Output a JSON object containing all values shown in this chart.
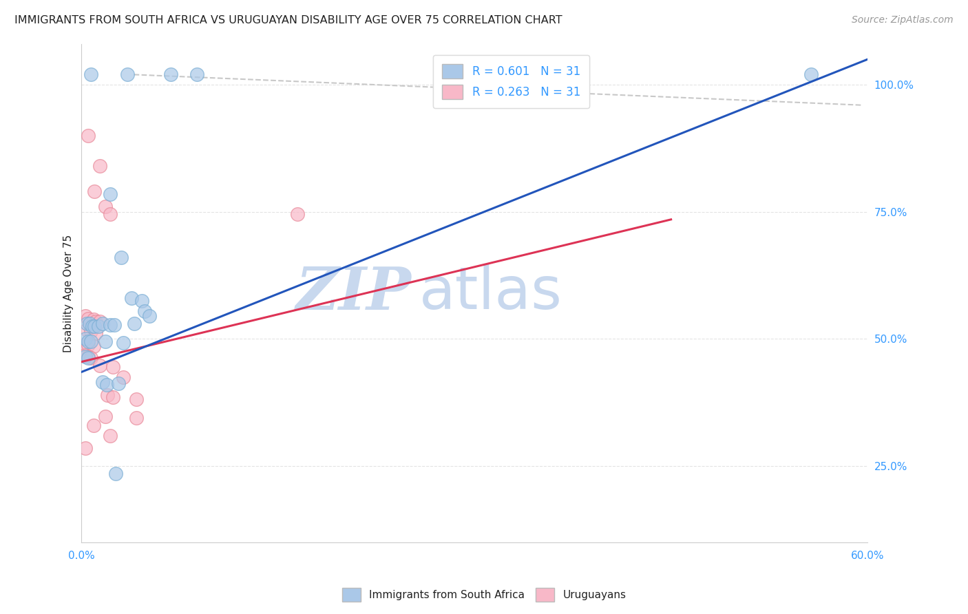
{
  "title": "IMMIGRANTS FROM SOUTH AFRICA VS URUGUAYAN DISABILITY AGE OVER 75 CORRELATION CHART",
  "source": "Source: ZipAtlas.com",
  "ylabel": "Disability Age Over 75",
  "x_min": 0.0,
  "x_max": 0.6,
  "y_min": 0.1,
  "y_max": 1.08,
  "y_ticks": [
    0.25,
    0.5,
    0.75,
    1.0
  ],
  "y_tick_labels": [
    "25.0%",
    "50.0%",
    "75.0%",
    "100.0%"
  ],
  "x_ticks": [
    0.0,
    0.1,
    0.2,
    0.3,
    0.4,
    0.5,
    0.6
  ],
  "x_tick_labels": [
    "0.0%",
    "",
    "",
    "",
    "",
    "",
    "60.0%"
  ],
  "legend_entries": [
    {
      "label": "R = 0.601   N = 31"
    },
    {
      "label": "R = 0.263   N = 31"
    }
  ],
  "legend_bottom": [
    {
      "label": "Immigrants from South Africa"
    },
    {
      "label": "Uruguayans"
    }
  ],
  "blue_line": {
    "x": [
      0.0,
      0.6
    ],
    "y": [
      0.435,
      1.05
    ]
  },
  "pink_line": {
    "x": [
      0.0,
      0.45
    ],
    "y": [
      0.455,
      0.735
    ]
  },
  "diag_line": {
    "x": [
      0.04,
      0.595
    ],
    "y": [
      1.02,
      0.96
    ]
  },
  "blue_scatter": [
    [
      0.007,
      1.02
    ],
    [
      0.035,
      1.02
    ],
    [
      0.068,
      1.02
    ],
    [
      0.088,
      1.02
    ],
    [
      0.557,
      1.02
    ],
    [
      0.022,
      0.785
    ],
    [
      0.03,
      0.66
    ],
    [
      0.038,
      0.58
    ],
    [
      0.046,
      0.575
    ],
    [
      0.004,
      0.53
    ],
    [
      0.006,
      0.53
    ],
    [
      0.008,
      0.525
    ],
    [
      0.01,
      0.525
    ],
    [
      0.013,
      0.525
    ],
    [
      0.016,
      0.53
    ],
    [
      0.022,
      0.528
    ],
    [
      0.025,
      0.528
    ],
    [
      0.04,
      0.53
    ],
    [
      0.048,
      0.555
    ],
    [
      0.052,
      0.545
    ],
    [
      0.003,
      0.5
    ],
    [
      0.005,
      0.495
    ],
    [
      0.007,
      0.495
    ],
    [
      0.018,
      0.495
    ],
    [
      0.032,
      0.492
    ],
    [
      0.003,
      0.465
    ],
    [
      0.005,
      0.462
    ],
    [
      0.016,
      0.415
    ],
    [
      0.019,
      0.41
    ],
    [
      0.028,
      0.412
    ],
    [
      0.026,
      0.235
    ]
  ],
  "pink_scatter": [
    [
      0.005,
      0.9
    ],
    [
      0.014,
      0.84
    ],
    [
      0.01,
      0.79
    ],
    [
      0.018,
      0.76
    ],
    [
      0.022,
      0.745
    ],
    [
      0.165,
      0.745
    ],
    [
      0.003,
      0.545
    ],
    [
      0.005,
      0.54
    ],
    [
      0.009,
      0.538
    ],
    [
      0.011,
      0.535
    ],
    [
      0.014,
      0.535
    ],
    [
      0.004,
      0.518
    ],
    [
      0.007,
      0.515
    ],
    [
      0.011,
      0.512
    ],
    [
      0.003,
      0.49
    ],
    [
      0.005,
      0.488
    ],
    [
      0.009,
      0.485
    ],
    [
      0.003,
      0.468
    ],
    [
      0.005,
      0.465
    ],
    [
      0.007,
      0.462
    ],
    [
      0.014,
      0.448
    ],
    [
      0.024,
      0.445
    ],
    [
      0.032,
      0.425
    ],
    [
      0.02,
      0.39
    ],
    [
      0.024,
      0.385
    ],
    [
      0.042,
      0.382
    ],
    [
      0.009,
      0.33
    ],
    [
      0.022,
      0.31
    ],
    [
      0.003,
      0.285
    ],
    [
      0.018,
      0.348
    ],
    [
      0.042,
      0.345
    ]
  ],
  "blue_color": "#aac8e8",
  "blue_edge_color": "#7aaed4",
  "pink_color": "#f8b8c8",
  "pink_edge_color": "#e88898",
  "blue_line_color": "#2255bb",
  "pink_line_color": "#dd3355",
  "diag_line_color": "#c8c8c8",
  "watermark_zip": "ZIP",
  "watermark_atlas": "atlas",
  "watermark_color": "#c8d8ee",
  "background_color": "#ffffff",
  "title_color": "#222222",
  "axis_color": "#3399ff",
  "grid_color": "#e0e0e0",
  "legend_blue_color": "#aac8e8",
  "legend_pink_color": "#f8b8c8"
}
